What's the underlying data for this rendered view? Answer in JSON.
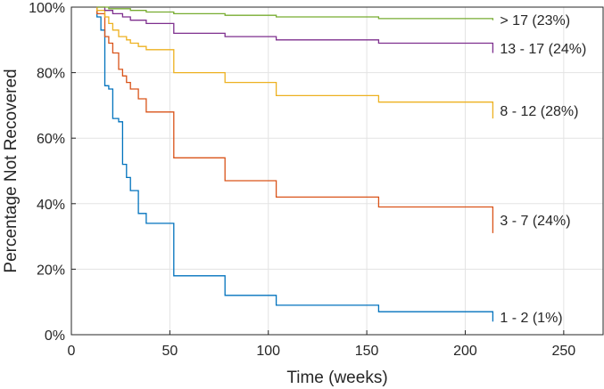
{
  "chart_data": {
    "type": "line",
    "step": true,
    "title": "",
    "xlabel": "Time (weeks)",
    "ylabel": "Percentage Not Recovered",
    "xlim": [
      0,
      270
    ],
    "ylim": [
      0,
      100
    ],
    "xticks": [
      0,
      50,
      100,
      150,
      200,
      250
    ],
    "yticks": [
      0,
      20,
      40,
      60,
      80,
      100
    ],
    "yticklabels": [
      "0%",
      "20%",
      "40%",
      "60%",
      "80%",
      "100%"
    ],
    "grid": true,
    "series": [
      {
        "name": "1 - 2 (1%)",
        "color": "#0072BD",
        "points": [
          [
            13,
            100
          ],
          [
            13,
            97
          ],
          [
            15,
            93
          ],
          [
            17,
            76
          ],
          [
            19,
            75
          ],
          [
            21,
            66
          ],
          [
            24,
            65
          ],
          [
            26,
            52
          ],
          [
            28,
            48
          ],
          [
            30,
            44
          ],
          [
            34,
            37
          ],
          [
            38,
            34
          ],
          [
            52,
            34
          ],
          [
            52,
            18
          ],
          [
            78,
            18
          ],
          [
            78,
            12
          ],
          [
            104,
            12
          ],
          [
            104,
            9
          ],
          [
            156,
            9
          ],
          [
            156,
            7
          ],
          [
            214,
            7
          ],
          [
            214,
            4
          ]
        ]
      },
      {
        "name": "3 - 7 (24%)",
        "color": "#D95319",
        "points": [
          [
            13,
            100
          ],
          [
            13,
            98
          ],
          [
            17,
            91
          ],
          [
            19,
            89
          ],
          [
            21,
            86
          ],
          [
            24,
            81
          ],
          [
            26,
            79
          ],
          [
            28,
            77
          ],
          [
            30,
            75
          ],
          [
            34,
            72
          ],
          [
            38,
            68
          ],
          [
            52,
            68
          ],
          [
            52,
            54
          ],
          [
            78,
            54
          ],
          [
            78,
            47
          ],
          [
            104,
            47
          ],
          [
            104,
            42
          ],
          [
            156,
            42
          ],
          [
            156,
            39
          ],
          [
            214,
            39
          ],
          [
            214,
            31
          ]
        ]
      },
      {
        "name": "8 - 12 (28%)",
        "color": "#EDB120",
        "points": [
          [
            13,
            100
          ],
          [
            13,
            99
          ],
          [
            17,
            97
          ],
          [
            19,
            95
          ],
          [
            21,
            93
          ],
          [
            24,
            91
          ],
          [
            28,
            90
          ],
          [
            30,
            89
          ],
          [
            34,
            88
          ],
          [
            38,
            87
          ],
          [
            52,
            87
          ],
          [
            52,
            80
          ],
          [
            78,
            80
          ],
          [
            78,
            77
          ],
          [
            104,
            77
          ],
          [
            104,
            73
          ],
          [
            156,
            73
          ],
          [
            156,
            71
          ],
          [
            214,
            71
          ],
          [
            214,
            66
          ]
        ]
      },
      {
        "name": "13 - 17 (24%)",
        "color": "#7E2F8E",
        "points": [
          [
            13,
            100
          ],
          [
            17,
            99
          ],
          [
            21,
            98
          ],
          [
            26,
            97
          ],
          [
            30,
            96
          ],
          [
            38,
            95
          ],
          [
            52,
            95
          ],
          [
            52,
            92
          ],
          [
            78,
            92
          ],
          [
            78,
            91
          ],
          [
            104,
            91
          ],
          [
            104,
            90
          ],
          [
            156,
            90
          ],
          [
            156,
            89
          ],
          [
            214,
            89
          ],
          [
            214,
            86
          ]
        ]
      },
      {
        "name": "> 17 (23%)",
        "color": "#77AC30",
        "points": [
          [
            13,
            100
          ],
          [
            19,
            99.5
          ],
          [
            30,
            99
          ],
          [
            38,
            98.5
          ],
          [
            52,
            98
          ],
          [
            78,
            97.5
          ],
          [
            104,
            97
          ],
          [
            156,
            96.5
          ],
          [
            214,
            96
          ]
        ]
      }
    ]
  }
}
